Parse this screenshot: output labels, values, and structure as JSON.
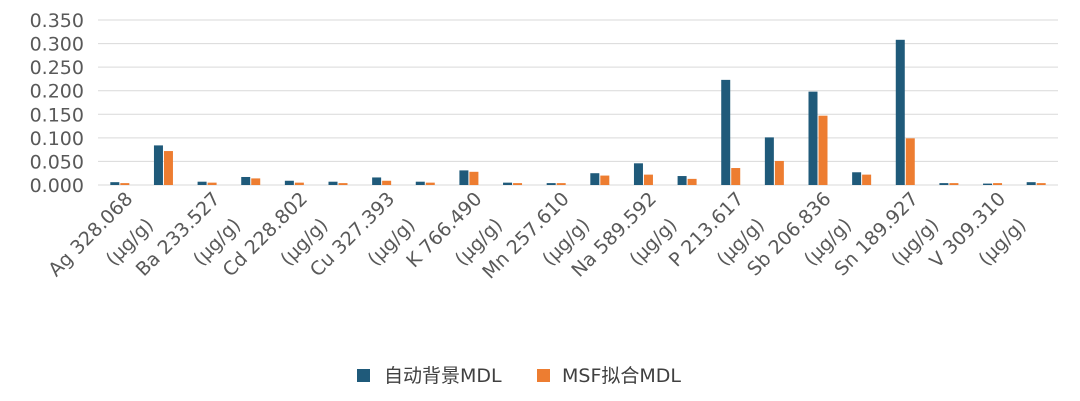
{
  "chart_data": {
    "type": "bar",
    "ylim": [
      0,
      0.35
    ],
    "y_ticks": [
      "0.000",
      "0.050",
      "0.100",
      "0.150",
      "0.200",
      "0.250",
      "0.300",
      "0.350"
    ],
    "grid": true,
    "legend_position": "bottom-center",
    "categories": [
      "Ag 328.068 (μg/g)",
      "",
      "Ba 233.527 (μg/g)",
      "",
      "Cd 228.802 (μg/g)",
      "",
      "Cu 327.393 (μg/g)",
      "",
      "K 766.490 (μg/g)",
      "",
      "Mn 257.610 (μg/g)",
      "",
      "Na 589.592 (μg/g)",
      "",
      "P 213.617 (μg/g)",
      "",
      "Sb 206.836 (μg/g)",
      "",
      "Sn 189.927 (μg/g)",
      "",
      "V 309.310 (μg/g)",
      ""
    ],
    "x_labels": [
      {
        "index": 0,
        "line1": "Ag 328.068",
        "line2": "(μg/g)"
      },
      {
        "index": 2,
        "line1": "Ba 233.527",
        "line2": "(μg/g)"
      },
      {
        "index": 4,
        "line1": "Cd 228.802",
        "line2": "(μg/g)"
      },
      {
        "index": 6,
        "line1": "Cu 327.393",
        "line2": "(μg/g)"
      },
      {
        "index": 8,
        "line1": "K 766.490",
        "line2": "(μg/g)"
      },
      {
        "index": 10,
        "line1": "Mn 257.610",
        "line2": "(μg/g)"
      },
      {
        "index": 12,
        "line1": "Na 589.592",
        "line2": "(μg/g)"
      },
      {
        "index": 14,
        "line1": "P 213.617",
        "line2": "(μg/g)"
      },
      {
        "index": 16,
        "line1": "Sb 206.836",
        "line2": "(μg/g)"
      },
      {
        "index": 18,
        "line1": "Sn 189.927",
        "line2": "(μg/g)"
      },
      {
        "index": 20,
        "line1": "V 309.310",
        "line2": "(μg/g)"
      }
    ],
    "series": [
      {
        "name": "自动背景MDL",
        "color": "#1f5a7a",
        "values": [
          0.006,
          0.084,
          0.007,
          0.017,
          0.009,
          0.007,
          0.016,
          0.007,
          0.031,
          0.005,
          0.004,
          0.025,
          0.046,
          0.019,
          0.223,
          0.101,
          0.198,
          0.027,
          0.308,
          0.004,
          0.003,
          0.006
        ]
      },
      {
        "name": "MSF拟合MDL",
        "color": "#ed7d31",
        "values": [
          0.004,
          0.072,
          0.005,
          0.014,
          0.005,
          0.004,
          0.009,
          0.005,
          0.028,
          0.004,
          0.004,
          0.02,
          0.022,
          0.013,
          0.036,
          0.051,
          0.147,
          0.022,
          0.099,
          0.004,
          0.004,
          0.004
        ]
      }
    ]
  }
}
